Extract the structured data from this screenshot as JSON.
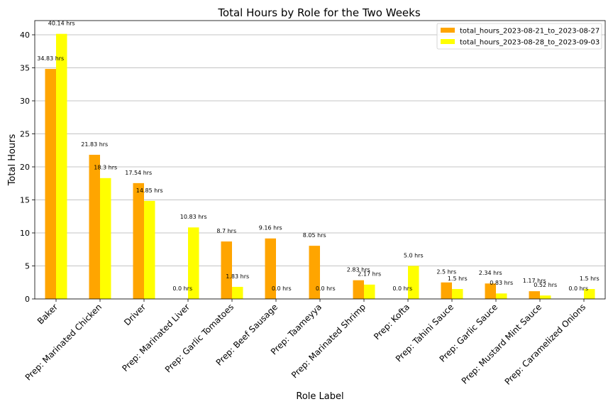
{
  "chart_data": {
    "type": "bar",
    "title": "Total Hours by Role for the Two Weeks",
    "xlabel": "Role Label",
    "ylabel": "Total Hours",
    "ylim": [
      0,
      42.15
    ],
    "yticks": [
      0,
      5,
      10,
      15,
      20,
      25,
      30,
      35,
      40
    ],
    "grid": "y",
    "legend_position": "top-right",
    "categories": [
      "Baker",
      "Prep: Marinated Chicken",
      "Driver",
      "Prep: Marinated Liver",
      "Prep: Garlic Tomatoes",
      "Prep: Beef Sausage",
      "Prep: Taameyya",
      "Prep: Marinated Shrimp",
      "Prep: Kofta",
      "Prep: Tahini Sauce",
      "Prep: Garlic Sauce",
      "Prep: Mustard Mint Sauce",
      "Prep: Caramelized Onions"
    ],
    "series": [
      {
        "name": "total_hours_2023-08-21_to_2023-08-27",
        "color": "#FFA500",
        "values": [
          34.83,
          21.83,
          17.54,
          0.0,
          8.7,
          9.16,
          8.05,
          2.83,
          0.0,
          2.5,
          2.34,
          1.17,
          0.0
        ],
        "labels": [
          "34.83 hrs",
          "21.83 hrs",
          "17.54 hrs",
          "0.0 hrs",
          "8.7 hrs",
          "9.16 hrs",
          "8.05 hrs",
          "2.83 hrs",
          "0.0 hrs",
          "2.5 hrs",
          "2.34 hrs",
          "1.17 hrs",
          "0.0 hrs"
        ]
      },
      {
        "name": "total_hours_2023-08-28_to_2023-09-03",
        "color": "#FFFF00",
        "values": [
          40.14,
          18.3,
          14.85,
          10.83,
          1.83,
          0.0,
          0.0,
          2.17,
          5.0,
          1.5,
          0.83,
          0.52,
          1.5
        ],
        "labels": [
          "40.14 hrs",
          "18.3 hrs",
          "14.85 hrs",
          "10.83 hrs",
          "1.83 hrs",
          "0.0 hrs",
          "0.0 hrs",
          "2.17 hrs",
          "5.0 hrs",
          "1.5 hrs",
          "0.83 hrs",
          "0.52 hrs",
          "1.5 hrs"
        ]
      }
    ]
  }
}
